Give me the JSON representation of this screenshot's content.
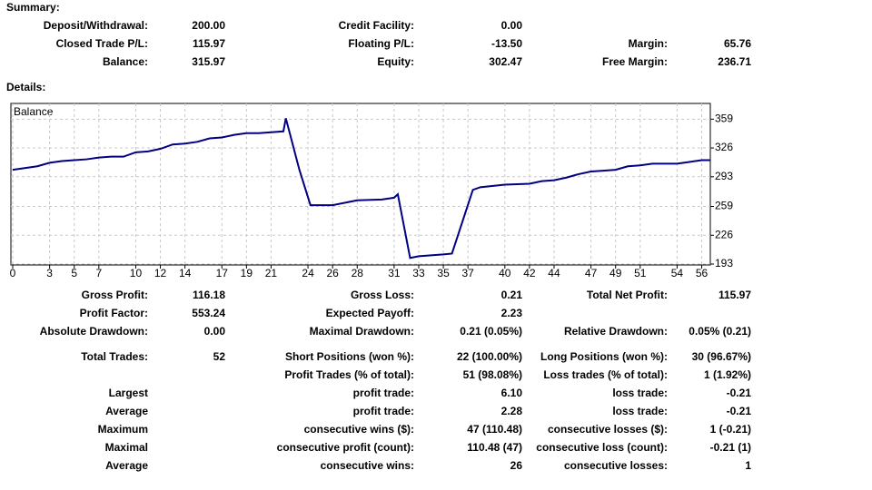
{
  "summary": {
    "title": "Summary:",
    "rows": [
      [
        {
          "label": "Deposit/Withdrawal:",
          "value": "200.00"
        },
        {
          "label": "Credit Facility:",
          "value": "0.00"
        }
      ],
      [
        {
          "label": "Closed Trade P/L:",
          "value": "115.97"
        },
        {
          "label": "Floating P/L:",
          "value": "-13.50"
        },
        {
          "label": "Margin:",
          "value": "65.76"
        }
      ],
      [
        {
          "label": "Balance:",
          "value": "315.97"
        },
        {
          "label": "Equity:",
          "value": "302.47"
        },
        {
          "label": "Free Margin:",
          "value": "236.71"
        }
      ]
    ]
  },
  "details_title": "Details:",
  "chart_data": {
    "type": "line",
    "legend": "Balance",
    "color": "#000080",
    "grid": true,
    "x": [
      0,
      2,
      3,
      4,
      5,
      6,
      7,
      8,
      9,
      10,
      11,
      12,
      13,
      14,
      15,
      16,
      17,
      18,
      19,
      20,
      21,
      22,
      22.2,
      23.3,
      24.2,
      26,
      28,
      30,
      31,
      31.3,
      32.3,
      33,
      35,
      35.7,
      37.4,
      38,
      40,
      42,
      43,
      44,
      45,
      46,
      47,
      48,
      49,
      50,
      51,
      52,
      53,
      54,
      55,
      56,
      56.7
    ],
    "values": [
      301,
      305,
      309,
      311,
      312,
      313,
      315,
      316,
      316,
      321,
      322,
      325,
      330,
      331,
      333,
      337,
      338,
      341,
      343,
      343,
      344,
      345,
      360,
      301,
      260.5,
      260.5,
      266,
      267,
      269,
      273,
      200,
      202,
      204,
      205,
      278,
      281,
      284,
      285,
      288,
      289,
      292,
      296,
      299,
      300,
      301,
      305,
      306,
      308,
      308,
      308,
      310,
      312,
      312
    ],
    "xlim": [
      0,
      56.7
    ],
    "ylim": [
      193,
      377
    ],
    "xticks": [
      0,
      3,
      5,
      7,
      10,
      12,
      14,
      17,
      19,
      21,
      24,
      26,
      28,
      31,
      33,
      35,
      37,
      40,
      42,
      44,
      47,
      49,
      51,
      54,
      56
    ],
    "yticks": [
      193,
      226,
      259,
      293,
      326,
      359
    ]
  },
  "details": {
    "rows": [
      [
        {
          "label": "Gross Profit:",
          "value": "116.18"
        },
        {
          "label": "Gross Loss:",
          "value": "0.21"
        },
        {
          "label": "Total Net Profit:",
          "value": "115.97"
        }
      ],
      [
        {
          "label": "Profit Factor:",
          "value": "553.24"
        },
        {
          "label": "Expected Payoff:",
          "value": "2.23"
        }
      ],
      [
        {
          "label": "Absolute Drawdown:",
          "value": "0.00"
        },
        {
          "label": "Maximal Drawdown:",
          "value": "0.21 (0.05%)"
        },
        {
          "label": "Relative Drawdown:",
          "value": "0.05% (0.21)"
        }
      ],
      [
        {
          "label": "Total Trades:",
          "value": "52"
        },
        {
          "label": "Short Positions (won %):",
          "value": "22 (100.00%)"
        },
        {
          "label": "Long Positions (won %):",
          "value": "30 (96.67%)"
        }
      ],
      [
        {
          "label": "Profit Trades (% of total):",
          "value": "51 (98.08%)"
        },
        {
          "label": "Loss trades (% of total):",
          "value": "1 (1.92%)"
        }
      ],
      [
        {
          "label": "Largest"
        },
        {
          "label": "profit trade:",
          "value": "6.10"
        },
        {
          "label": "loss trade:",
          "value": "-0.21"
        }
      ],
      [
        {
          "label": "Average"
        },
        {
          "label": "profit trade:",
          "value": "2.28"
        },
        {
          "label": "loss trade:",
          "value": "-0.21"
        }
      ],
      [
        {
          "label": "Maximum"
        },
        {
          "label": "consecutive wins ($):",
          "value": "47 (110.48)"
        },
        {
          "label": "consecutive losses ($):",
          "value": "1 (-0.21)"
        }
      ],
      [
        {
          "label": "Maximal"
        },
        {
          "label": "consecutive profit (count):",
          "value": "110.48 (47)"
        },
        {
          "label": "consecutive loss (count):",
          "value": "-0.21 (1)"
        }
      ],
      [
        {
          "label": "Average"
        },
        {
          "label": "consecutive wins:",
          "value": "26"
        },
        {
          "label": "consecutive losses:",
          "value": "1"
        }
      ]
    ]
  }
}
